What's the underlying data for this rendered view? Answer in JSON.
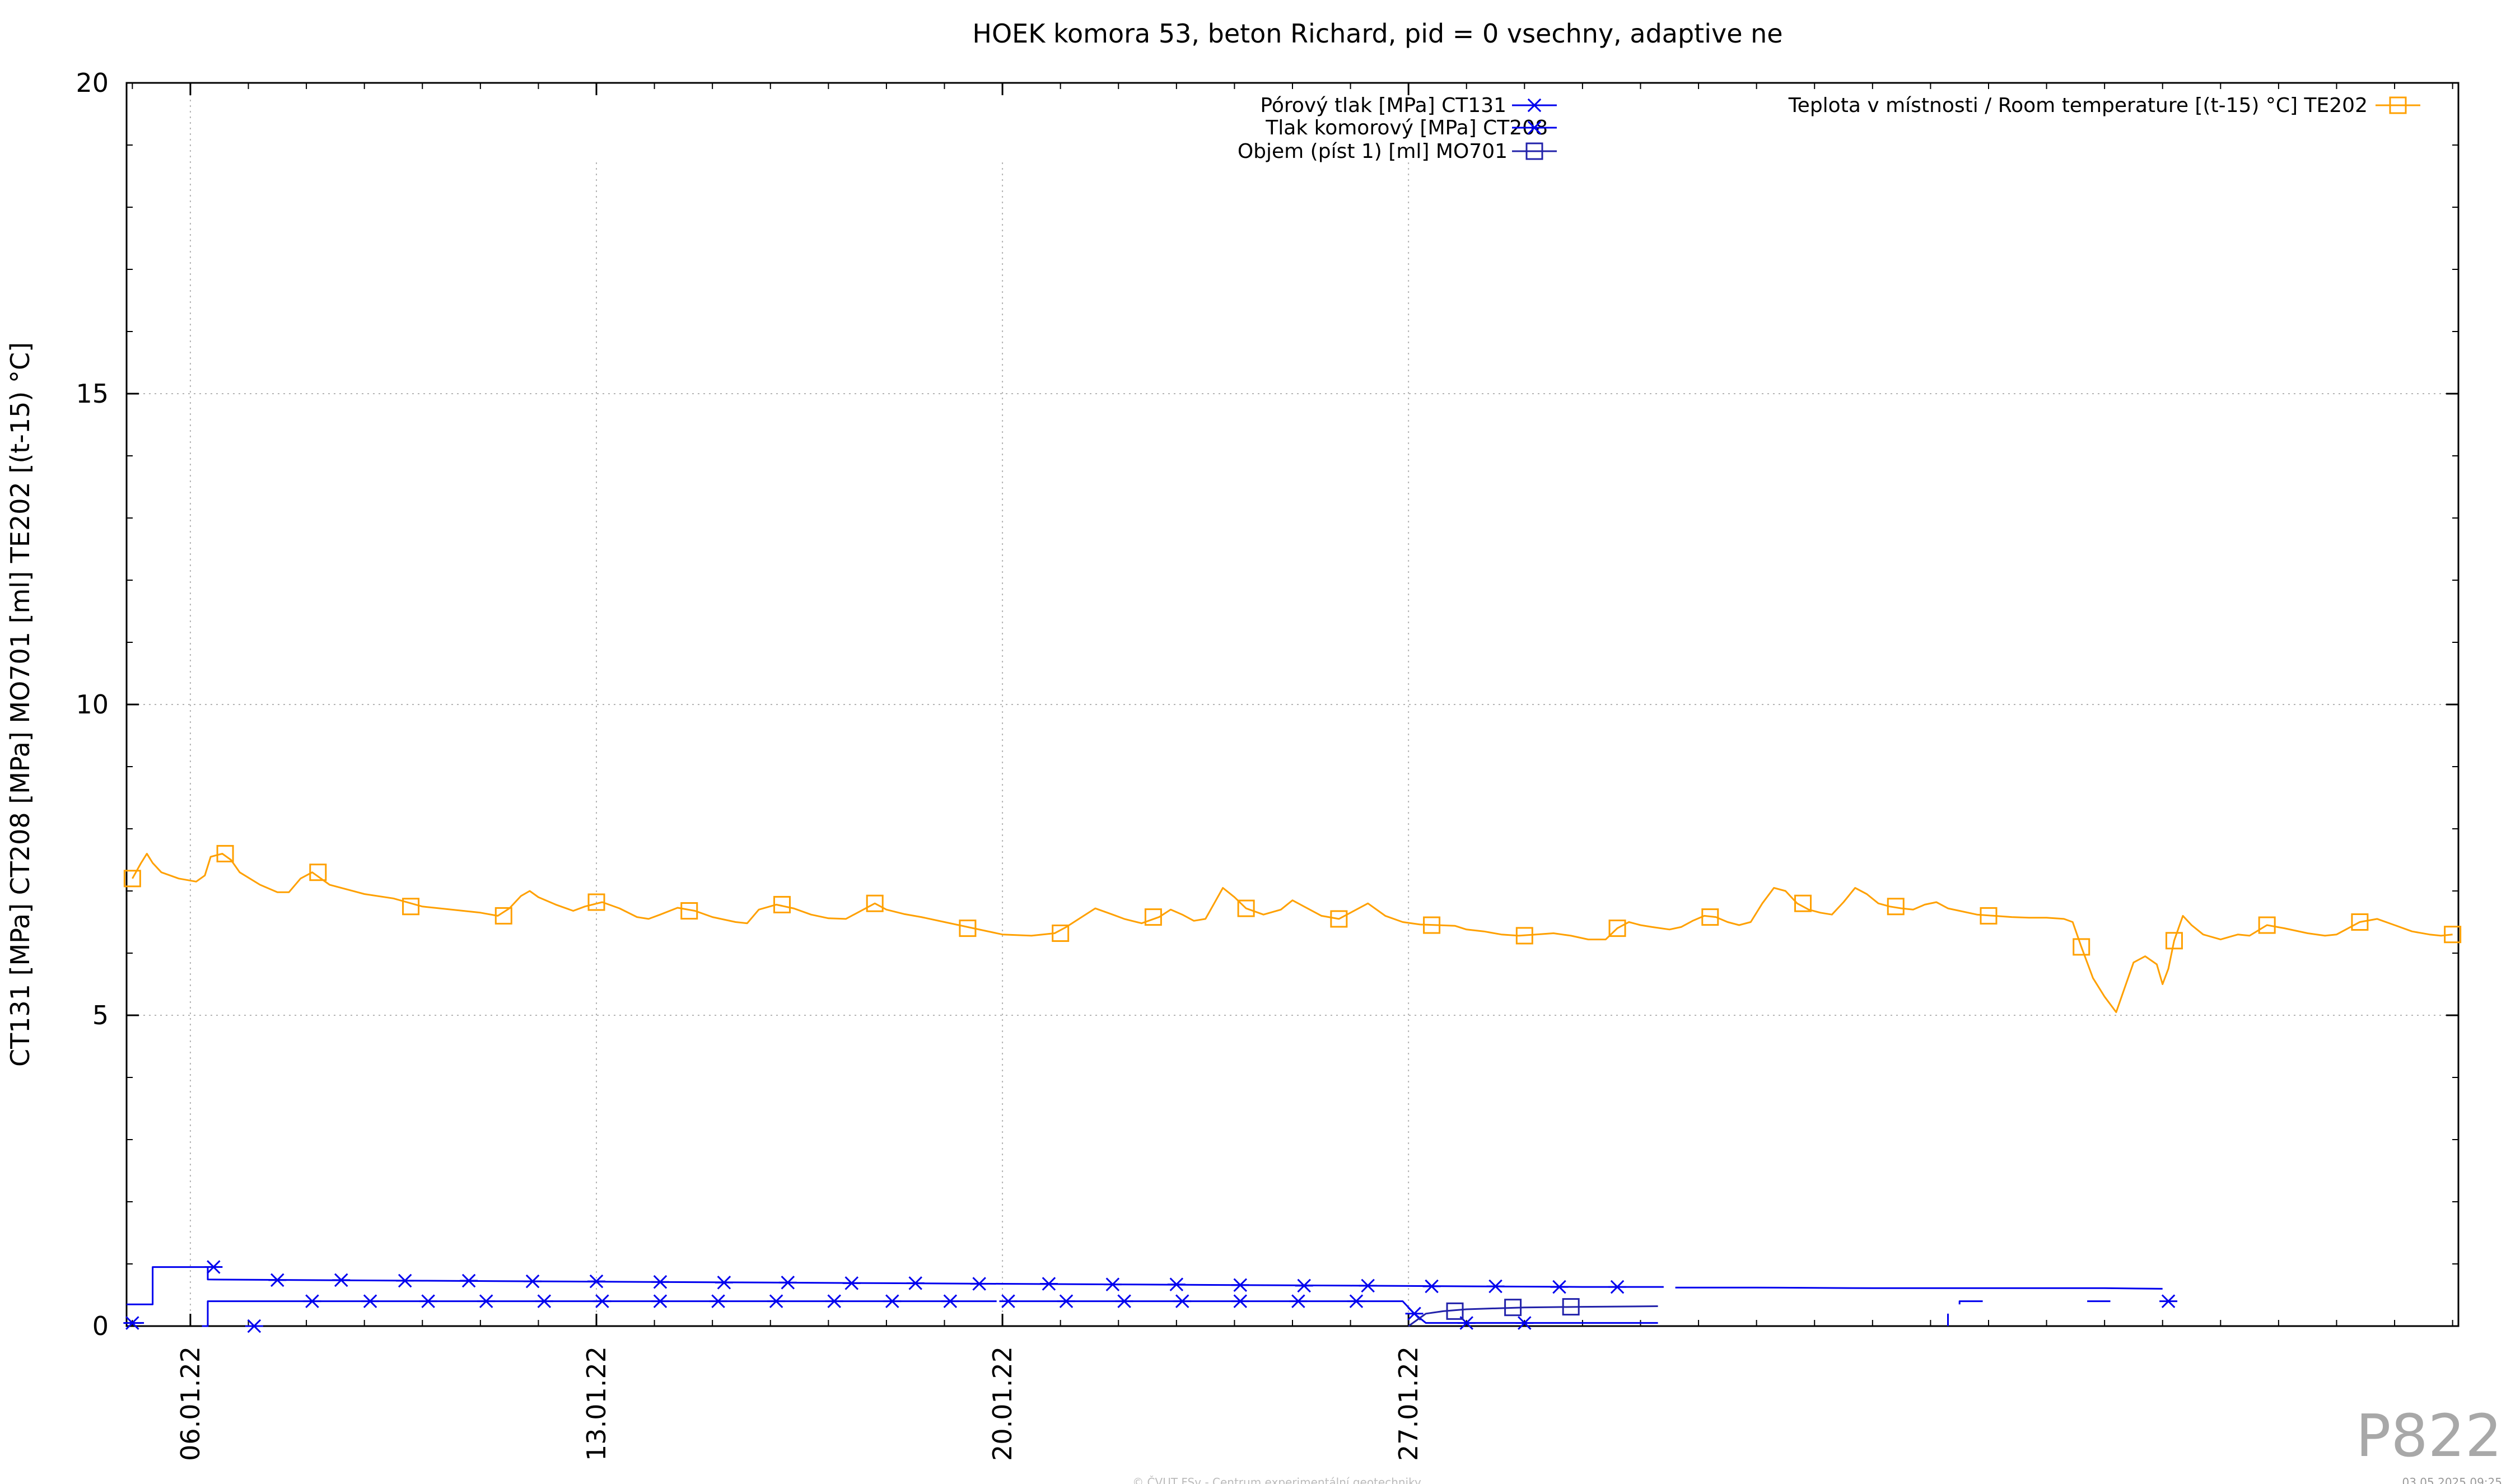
{
  "chart_data": {
    "type": "line",
    "title": "HOEK komora 53, beton Richard, pid = 0 vsechny, adaptive ne",
    "ylabel": "CT131 [MPa] CT208 [MPa] MO701 [ml] TE202 [(t-15) °C]",
    "xlabel": "",
    "ylim": [
      0,
      20
    ],
    "yticks": [
      "0",
      "5",
      "10",
      "15",
      "20"
    ],
    "xlim_day": [
      4.9,
      45.1
    ],
    "xticks": [
      {
        "day": 6,
        "label": "06.01.22"
      },
      {
        "day": 13,
        "label": "13.01.22"
      },
      {
        "day": 20,
        "label": "20.01.22"
      },
      {
        "day": 27,
        "label": "27.01.22"
      }
    ],
    "grid": true,
    "legend_position": "top",
    "series": [
      {
        "name": "Pórový tlak [MPa] CT131",
        "color": "#0000ee",
        "marker": "asterisk",
        "points": [
          [
            4.9,
            0.35
          ],
          [
            5.2,
            0.35
          ],
          [
            5.35,
            0.35
          ],
          [
            5.35,
            0.95
          ],
          [
            6.0,
            0.95
          ],
          [
            6.3,
            0.95
          ],
          [
            6.3,
            0.75
          ],
          [
            8,
            0.74
          ],
          [
            10,
            0.73
          ],
          [
            12,
            0.72
          ],
          [
            14,
            0.71
          ],
          [
            16,
            0.7
          ],
          [
            18,
            0.69
          ],
          [
            20,
            0.68
          ],
          [
            22,
            0.67
          ],
          [
            24,
            0.66
          ],
          [
            26,
            0.65
          ],
          [
            28,
            0.64
          ],
          [
            30,
            0.63
          ],
          [
            31.4,
            0.63
          ],
          null,
          [
            31.6,
            0.62
          ],
          [
            33,
            0.62
          ],
          [
            35,
            0.61
          ],
          [
            37,
            0.61
          ],
          [
            39,
            0.61
          ],
          [
            40,
            0.6
          ]
        ],
        "markers_x": [
          6.4,
          7.5,
          8.6,
          9.7,
          10.8,
          11.9,
          13.0,
          14.1,
          15.2,
          16.3,
          17.4,
          18.5,
          19.6,
          20.8,
          21.9,
          23.0,
          24.1,
          25.2,
          26.3,
          27.4,
          28.5,
          29.6,
          30.6
        ]
      },
      {
        "name": "Tlak komorový [MPa] CT208",
        "color": "#0000ee",
        "marker": "asterisk",
        "points": [
          [
            4.9,
            0.05
          ],
          [
            5.2,
            0.05
          ],
          null,
          [
            6.2,
            0.0
          ],
          [
            6.3,
            0.0
          ],
          [
            6.3,
            0.4
          ],
          [
            8,
            0.4
          ],
          [
            10,
            0.4
          ],
          [
            12,
            0.4
          ],
          [
            14,
            0.4
          ],
          [
            16,
            0.4
          ],
          [
            18,
            0.4
          ],
          [
            19.9,
            0.4
          ],
          null,
          [
            20.2,
            0.4
          ],
          [
            22,
            0.4
          ],
          [
            24,
            0.4
          ],
          [
            26,
            0.4
          ],
          [
            26.9,
            0.4
          ],
          [
            27.1,
            0.2
          ],
          [
            27.3,
            0.05
          ],
          [
            28,
            0.05
          ],
          [
            30,
            0.05
          ],
          [
            31.3,
            0.05
          ],
          null,
          [
            36.3,
            0.0
          ],
          [
            36.3,
            0.2
          ],
          null,
          [
            36.5,
            0.35
          ],
          [
            36.5,
            0.4
          ],
          [
            36.9,
            0.4
          ],
          null,
          [
            38.7,
            0.4
          ],
          [
            39.1,
            0.4
          ]
        ],
        "markers_x": [
          5.0,
          7.1,
          8.1,
          9.1,
          10.1,
          11.1,
          12.1,
          13.1,
          14.1,
          15.1,
          16.1,
          17.1,
          18.1,
          19.1,
          20.1,
          21.1,
          22.1,
          23.1,
          24.1,
          25.1,
          26.1,
          27.1,
          28.0,
          29.0,
          40.1
        ]
      },
      {
        "name": "Objem (píst 1) [ml] MO701",
        "color": "#2222aa",
        "marker": "square",
        "points": [
          [
            27.0,
            0.0
          ],
          [
            27.3,
            0.2
          ],
          [
            27.6,
            0.24
          ],
          [
            28,
            0.27
          ],
          [
            29,
            0.3
          ],
          [
            30,
            0.31
          ],
          [
            31.3,
            0.32
          ]
        ],
        "markers_x": [
          27.8,
          28.8,
          29.8
        ]
      },
      {
        "name": "Teplota v místnosti / Room temperature [(t-15) °C] TE202",
        "color": "#ffa000",
        "marker": "square",
        "points": [
          [
            5.0,
            7.2
          ],
          [
            5.15,
            7.45
          ],
          [
            5.25,
            7.6
          ],
          [
            5.35,
            7.45
          ],
          [
            5.5,
            7.3
          ],
          [
            5.8,
            7.2
          ],
          [
            6.1,
            7.15
          ],
          [
            6.25,
            7.25
          ],
          [
            6.35,
            7.55
          ],
          [
            6.55,
            7.6
          ],
          [
            6.7,
            7.5
          ],
          [
            6.85,
            7.3
          ],
          [
            7.2,
            7.1
          ],
          [
            7.5,
            6.98
          ],
          [
            7.7,
            6.98
          ],
          [
            7.9,
            7.2
          ],
          [
            8.1,
            7.3
          ],
          [
            8.4,
            7.1
          ],
          [
            9,
            6.95
          ],
          [
            9.5,
            6.88
          ],
          [
            10,
            6.75
          ],
          [
            10.5,
            6.7
          ],
          [
            11,
            6.65
          ],
          [
            11.3,
            6.6
          ],
          [
            11.5,
            6.72
          ],
          [
            11.7,
            6.92
          ],
          [
            11.85,
            7.0
          ],
          [
            12.0,
            6.9
          ],
          [
            12.3,
            6.78
          ],
          [
            12.6,
            6.68
          ],
          [
            12.8,
            6.75
          ],
          [
            13.1,
            6.82
          ],
          [
            13.4,
            6.72
          ],
          [
            13.7,
            6.58
          ],
          [
            13.9,
            6.55
          ],
          [
            14.1,
            6.62
          ],
          [
            14.4,
            6.73
          ],
          [
            14.7,
            6.68
          ],
          [
            15.0,
            6.58
          ],
          [
            15.4,
            6.5
          ],
          [
            15.6,
            6.48
          ],
          [
            15.8,
            6.7
          ],
          [
            16.1,
            6.78
          ],
          [
            16.4,
            6.72
          ],
          [
            16.7,
            6.62
          ],
          [
            17.0,
            6.56
          ],
          [
            17.3,
            6.55
          ],
          [
            17.6,
            6.7
          ],
          [
            17.8,
            6.8
          ],
          [
            18.0,
            6.7
          ],
          [
            18.3,
            6.63
          ],
          [
            18.6,
            6.58
          ],
          [
            19.0,
            6.5
          ],
          [
            19.5,
            6.4
          ],
          [
            20.0,
            6.3
          ],
          [
            20.5,
            6.28
          ],
          [
            20.9,
            6.32
          ],
          [
            21.1,
            6.42
          ],
          [
            21.4,
            6.6
          ],
          [
            21.6,
            6.72
          ],
          [
            21.9,
            6.62
          ],
          [
            22.1,
            6.55
          ],
          [
            22.4,
            6.48
          ],
          [
            22.7,
            6.58
          ],
          [
            22.9,
            6.7
          ],
          [
            23.1,
            6.62
          ],
          [
            23.3,
            6.52
          ],
          [
            23.5,
            6.55
          ],
          [
            23.65,
            6.8
          ],
          [
            23.8,
            7.05
          ],
          [
            24.0,
            6.9
          ],
          [
            24.2,
            6.72
          ],
          [
            24.5,
            6.62
          ],
          [
            24.8,
            6.7
          ],
          [
            25.0,
            6.85
          ],
          [
            25.2,
            6.75
          ],
          [
            25.5,
            6.6
          ],
          [
            25.8,
            6.55
          ],
          [
            26.1,
            6.7
          ],
          [
            26.3,
            6.8
          ],
          [
            26.6,
            6.6
          ],
          [
            26.9,
            6.5
          ],
          [
            27.2,
            6.46
          ],
          [
            27.5,
            6.45
          ],
          [
            27.8,
            6.44
          ],
          [
            28.0,
            6.38
          ],
          [
            28.3,
            6.35
          ],
          [
            28.6,
            6.3
          ],
          [
            28.9,
            6.28
          ],
          [
            29.2,
            6.3
          ],
          [
            29.5,
            6.32
          ],
          [
            29.8,
            6.28
          ],
          [
            30.1,
            6.22
          ],
          [
            30.4,
            6.22
          ],
          [
            30.6,
            6.4
          ],
          [
            30.8,
            6.5
          ],
          [
            31.0,
            6.45
          ],
          [
            31.2,
            6.42
          ],
          [
            31.5,
            6.38
          ],
          [
            31.7,
            6.42
          ],
          [
            31.9,
            6.52
          ],
          [
            32.1,
            6.6
          ],
          [
            32.3,
            6.58
          ],
          [
            32.5,
            6.5
          ],
          [
            32.7,
            6.45
          ],
          [
            32.9,
            6.5
          ],
          [
            33.1,
            6.8
          ],
          [
            33.3,
            7.05
          ],
          [
            33.5,
            7.0
          ],
          [
            33.7,
            6.8
          ],
          [
            33.9,
            6.7
          ],
          [
            34.1,
            6.65
          ],
          [
            34.3,
            6.62
          ],
          [
            34.5,
            6.82
          ],
          [
            34.7,
            7.05
          ],
          [
            34.9,
            6.95
          ],
          [
            35.1,
            6.8
          ],
          [
            35.3,
            6.75
          ],
          [
            35.5,
            6.72
          ],
          [
            35.7,
            6.7
          ],
          [
            35.9,
            6.78
          ],
          [
            36.1,
            6.82
          ],
          [
            36.3,
            6.72
          ],
          [
            36.5,
            6.68
          ],
          [
            36.8,
            6.62
          ],
          [
            37.1,
            6.6
          ],
          [
            37.4,
            6.58
          ],
          [
            37.7,
            6.57
          ],
          [
            38.0,
            6.57
          ],
          [
            38.3,
            6.55
          ],
          [
            38.45,
            6.5
          ],
          [
            38.6,
            6.1
          ],
          [
            38.8,
            5.6
          ],
          [
            39.0,
            5.3
          ],
          [
            39.2,
            5.05
          ],
          [
            39.35,
            5.45
          ],
          [
            39.5,
            5.85
          ],
          [
            39.7,
            5.95
          ],
          [
            39.9,
            5.82
          ],
          [
            40.0,
            5.5
          ],
          [
            40.1,
            5.75
          ],
          [
            40.2,
            6.2
          ],
          [
            40.35,
            6.6
          ],
          [
            40.5,
            6.45
          ],
          [
            40.7,
            6.3
          ],
          [
            41.0,
            6.22
          ],
          [
            41.3,
            6.3
          ],
          [
            41.5,
            6.28
          ],
          [
            41.8,
            6.45
          ],
          [
            42.1,
            6.4
          ],
          [
            42.5,
            6.32
          ],
          [
            42.8,
            6.28
          ],
          [
            43.0,
            6.3
          ],
          [
            43.2,
            6.4
          ],
          [
            43.4,
            6.5
          ],
          [
            43.7,
            6.55
          ],
          [
            44.0,
            6.45
          ],
          [
            44.3,
            6.35
          ],
          [
            44.6,
            6.3
          ],
          [
            44.8,
            6.28
          ],
          [
            45.0,
            6.3
          ]
        ],
        "markers_x": [
          5.0,
          6.6,
          8.2,
          9.8,
          11.4,
          13.0,
          14.6,
          16.2,
          17.8,
          19.4,
          21.0,
          22.6,
          24.2,
          25.8,
          27.4,
          29.0,
          30.6,
          32.2,
          33.8,
          35.4,
          37.0,
          38.6,
          40.2,
          41.8,
          43.4,
          45.0
        ]
      }
    ]
  },
  "legend": {
    "items": [
      {
        "label": "Pórový tlak [MPa] CT131"
      },
      {
        "label": "Tlak komorový [MPa] CT208"
      },
      {
        "label": "Objem (píst 1) [ml] MO701"
      },
      {
        "label": "Teplota v místnosti / Room temperature [(t-15) °C] TE202"
      }
    ]
  },
  "watermark": "P822",
  "footer": "© ČVUT FSv - Centrum experimentální geotechniky",
  "timestamp": "03.05.2025 09:25"
}
